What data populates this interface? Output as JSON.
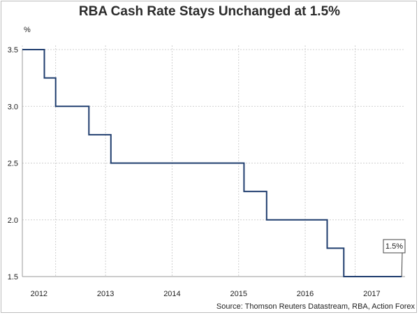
{
  "chart_data": {
    "type": "line",
    "title": "RBA Cash Rate Stays Unchanged at 1.5%",
    "ylabel": "%",
    "xlabel": "",
    "source": "Source: Thomson Reuters Datastream, RBA, Action Forex",
    "ylim": [
      1.5,
      3.5
    ],
    "y_ticks": [
      "3.5",
      "3.0",
      "2.5",
      "2.0",
      "1.5"
    ],
    "xlim": [
      2011.75,
      2017.5
    ],
    "x_ticks": [
      {
        "label": "2012",
        "value": 2012.0
      },
      {
        "label": "2013",
        "value": 2013.0
      },
      {
        "label": "2014",
        "value": 2014.0
      },
      {
        "label": "2015",
        "value": 2015.0
      },
      {
        "label": "2016",
        "value": 2016.0
      },
      {
        "label": "2017",
        "value": 2017.0
      }
    ],
    "x_gridlines": [
      2011.75,
      2012.25,
      2013.0,
      2014.0,
      2015.0,
      2016.0,
      2016.75
    ],
    "series": [
      {
        "name": "RBA Cash Rate",
        "color": "#1f3d6e",
        "step": true,
        "points": [
          [
            2011.75,
            3.5
          ],
          [
            2012.08,
            3.5
          ],
          [
            2012.08,
            3.25
          ],
          [
            2012.25,
            3.25
          ],
          [
            2012.25,
            3.0
          ],
          [
            2012.75,
            3.0
          ],
          [
            2012.75,
            2.75
          ],
          [
            2013.08,
            2.75
          ],
          [
            2013.08,
            2.5
          ],
          [
            2015.08,
            2.5
          ],
          [
            2015.08,
            2.25
          ],
          [
            2015.42,
            2.25
          ],
          [
            2015.42,
            2.0
          ],
          [
            2016.33,
            2.0
          ],
          [
            2016.33,
            1.75
          ],
          [
            2016.58,
            1.75
          ],
          [
            2016.58,
            1.5
          ],
          [
            2017.45,
            1.5
          ]
        ]
      }
    ],
    "annotations": [
      {
        "text": "1.5%",
        "x": 2017.45,
        "y": 1.5
      }
    ]
  }
}
